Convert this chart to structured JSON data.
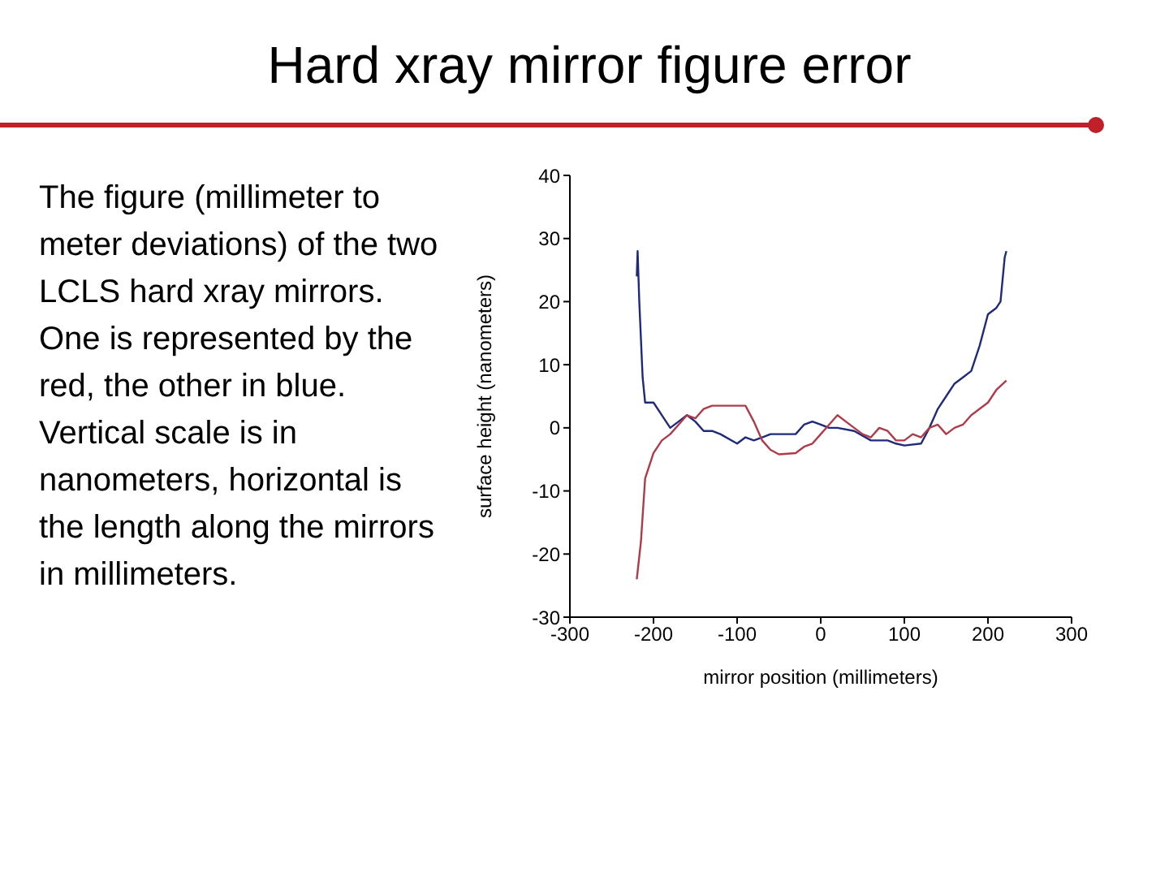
{
  "chart_data": {
    "type": "line",
    "title": "Hard xray mirror figure error",
    "xlabel": "mirror position (millimeters)",
    "ylabel": "surface height (nanometers)",
    "annotations": [
      "The figure (millimeter to meter deviations) of the two LCLS hard xray mirrors. One is represented by the red, the other in blue. Vertical scale is in nanometers, horizontal is the length along the mirrors in millimeters."
    ],
    "xlim": [
      -300,
      300
    ],
    "xticks": [
      -300,
      -200,
      -100,
      0,
      100,
      200,
      300
    ],
    "ylim": [
      -30,
      40
    ],
    "yticks": [
      -30,
      -20,
      -10,
      0,
      10,
      20,
      30,
      40
    ],
    "grid": false,
    "series": [
      {
        "color": "#1f2a7a",
        "x": [
          -220,
          -219,
          -217,
          -213,
          -210,
          -200,
          -190,
          -180,
          -170,
          -160,
          -150,
          -140,
          -130,
          -120,
          -100,
          -90,
          -80,
          -70,
          -60,
          -50,
          -30,
          -20,
          -10,
          0,
          10,
          20,
          40,
          60,
          80,
          90,
          100,
          120,
          130,
          140,
          150,
          160,
          170,
          180,
          190,
          200,
          210,
          215,
          220,
          222
        ],
        "values": [
          24,
          28,
          20,
          8,
          4,
          4,
          2,
          0,
          1,
          2,
          1,
          -0.5,
          -0.5,
          -1,
          -2.5,
          -1.5,
          -2,
          -1.5,
          -1,
          -1,
          -1,
          0.5,
          1,
          0.5,
          0,
          0,
          -0.5,
          -2,
          -2,
          -2.5,
          -2.8,
          -2.5,
          0,
          3,
          5,
          7,
          8,
          9,
          13,
          18,
          19,
          20,
          27,
          28
        ]
      },
      {
        "color": "#b03a4a",
        "x": [
          -220,
          -215,
          -210,
          -200,
          -190,
          -180,
          -170,
          -160,
          -150,
          -140,
          -130,
          -110,
          -90,
          -80,
          -70,
          -60,
          -50,
          -30,
          -20,
          -10,
          0,
          10,
          20,
          30,
          40,
          50,
          60,
          70,
          80,
          90,
          100,
          110,
          120,
          130,
          140,
          150,
          160,
          170,
          180,
          190,
          200,
          210,
          222
        ],
        "values": [
          -24,
          -18,
          -8,
          -4,
          -2,
          -1,
          0.5,
          2,
          1.5,
          3,
          3.5,
          3.5,
          3.5,
          1,
          -2,
          -3.5,
          -4.2,
          -4,
          -3,
          -2.5,
          -1,
          0.5,
          2,
          1,
          0,
          -1,
          -1.5,
          0,
          -0.5,
          -2,
          -2,
          -1,
          -1.5,
          0,
          0.5,
          -1,
          0,
          0.5,
          2,
          3,
          4,
          6,
          7.5
        ]
      }
    ]
  }
}
